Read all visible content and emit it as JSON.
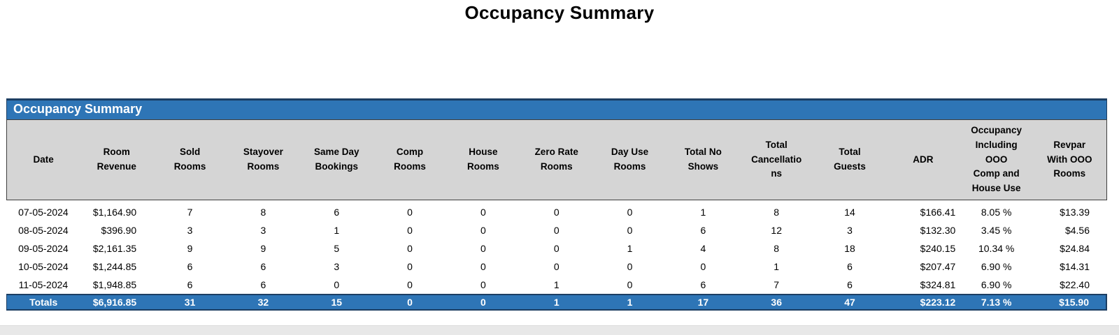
{
  "page_title": "Occupancy Summary",
  "section": {
    "title": "Occupancy Summary"
  },
  "colors": {
    "header_blue": "#2E75B6",
    "dark_navy": "#1C3E63",
    "header_gray": "#D5D5D5",
    "header_border": "#3F3F3F",
    "bottom_strip": "#E8E8E8"
  },
  "table": {
    "columns": [
      {
        "label": "Date"
      },
      {
        "label": "Room\nRevenue"
      },
      {
        "label": "Sold\nRooms"
      },
      {
        "label": "Stayover\nRooms"
      },
      {
        "label": "Same Day\nBookings"
      },
      {
        "label": "Comp\nRooms"
      },
      {
        "label": "House\nRooms"
      },
      {
        "label": "Zero Rate\nRooms"
      },
      {
        "label": "Day Use\nRooms"
      },
      {
        "label": "Total No\nShows"
      },
      {
        "label": "Total\nCancellatio\nns"
      },
      {
        "label": "Total\nGuests"
      },
      {
        "label": "ADR"
      },
      {
        "label": "Occupancy\nIncluding\nOOO\nComp and\nHouse Use"
      },
      {
        "label": "Revpar\nWith OOO\nRooms"
      }
    ],
    "rows": [
      [
        "07-05-2024",
        "$1,164.90",
        "7",
        "8",
        "6",
        "0",
        "0",
        "0",
        "0",
        "1",
        "8",
        "14",
        "$166.41",
        "8.05 %",
        "$13.39"
      ],
      [
        "08-05-2024",
        "$396.90",
        "3",
        "3",
        "1",
        "0",
        "0",
        "0",
        "0",
        "6",
        "12",
        "3",
        "$132.30",
        "3.45 %",
        "$4.56"
      ],
      [
        "09-05-2024",
        "$2,161.35",
        "9",
        "9",
        "5",
        "0",
        "0",
        "0",
        "1",
        "4",
        "8",
        "18",
        "$240.15",
        "10.34 %",
        "$24.84"
      ],
      [
        "10-05-2024",
        "$1,244.85",
        "6",
        "6",
        "3",
        "0",
        "0",
        "0",
        "0",
        "0",
        "1",
        "6",
        "$207.47",
        "6.90 %",
        "$14.31"
      ],
      [
        "11-05-2024",
        "$1,948.85",
        "6",
        "6",
        "0",
        "0",
        "0",
        "1",
        "0",
        "6",
        "7",
        "6",
        "$324.81",
        "6.90 %",
        "$22.40"
      ]
    ],
    "totals": [
      "Totals",
      "$6,916.85",
      "31",
      "32",
      "15",
      "0",
      "0",
      "1",
      "1",
      "17",
      "36",
      "47",
      "$223.12",
      "7.13 %",
      "$15.90"
    ]
  }
}
